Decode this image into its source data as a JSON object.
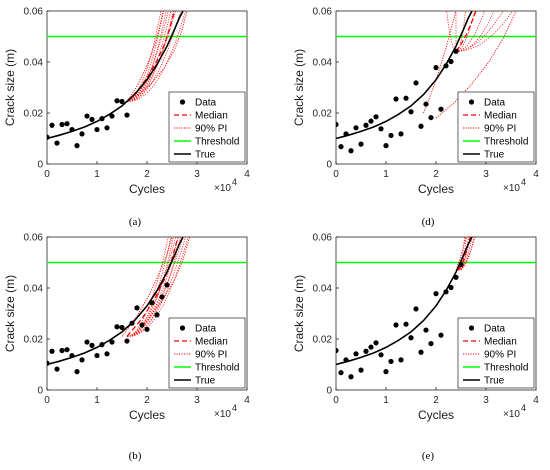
{
  "colors": {
    "data": "#000000",
    "median": "#ff0000",
    "pi": "#ff0000",
    "threshold": "#00ff00",
    "true": "#000000"
  },
  "legend_labels": [
    "Data",
    "Median",
    "90% PI",
    "Threshold",
    "True"
  ],
  "chart_data": [
    {
      "type": "line",
      "caption": "(a)",
      "xlabel": "Cycles",
      "ylabel": "Crack size (m)",
      "x_multiplier": "×10",
      "x_exponent": "4",
      "xlim": [
        0,
        4
      ],
      "ylim": [
        0,
        0.06
      ],
      "x_ticks": [
        "0",
        "1",
        "2",
        "3",
        "4"
      ],
      "y_ticks": [
        "0",
        "0.02",
        "0.04",
        "0.06"
      ],
      "threshold": 0.05,
      "legend_position": "lower-right",
      "series": [
        {
          "name": "Data",
          "kind": "scatter",
          "x": [
            0.0,
            0.1,
            0.2,
            0.3,
            0.4,
            0.5,
            0.6,
            0.7,
            0.8,
            0.9,
            1.0,
            1.1,
            1.2,
            1.3,
            1.4,
            1.5,
            1.6
          ],
          "y": [
            0.0105,
            0.0152,
            0.0082,
            0.0155,
            0.0158,
            0.0135,
            0.0072,
            0.0118,
            0.0188,
            0.0175,
            0.0135,
            0.0178,
            0.0142,
            0.0188,
            0.0248,
            0.0245,
            0.0192
          ]
        },
        {
          "name": "True",
          "kind": "line",
          "x": [
            0.0,
            0.25,
            0.5,
            0.75,
            1.0,
            1.25,
            1.5,
            1.75,
            2.0,
            2.2,
            2.4,
            2.55,
            2.65,
            2.72
          ],
          "y": [
            0.01,
            0.0113,
            0.0128,
            0.0145,
            0.0167,
            0.0195,
            0.0228,
            0.0272,
            0.033,
            0.039,
            0.0462,
            0.0528,
            0.0574,
            0.06
          ]
        },
        {
          "name": "Median",
          "kind": "line",
          "x": [
            1.6,
            1.8,
            2.0,
            2.2,
            2.35,
            2.45,
            2.55
          ],
          "y": [
            0.0245,
            0.0285,
            0.0338,
            0.0405,
            0.047,
            0.053,
            0.06
          ]
        },
        {
          "name": "90% PI lower",
          "kind": "line",
          "x": [
            1.6,
            1.8,
            2.0,
            2.15,
            2.25,
            2.32
          ],
          "y": [
            0.0245,
            0.0305,
            0.0385,
            0.0465,
            0.0535,
            0.06
          ]
        },
        {
          "name": "90% PI upper",
          "kind": "line",
          "x": [
            1.6,
            1.85,
            2.1,
            2.35,
            2.55,
            2.7,
            2.8
          ],
          "y": [
            0.0245,
            0.0275,
            0.0318,
            0.0378,
            0.0448,
            0.0525,
            0.06
          ]
        }
      ],
      "fan_end_x": [
        2.3,
        2.35,
        2.4,
        2.45,
        2.5,
        2.55,
        2.6,
        2.7,
        2.8
      ]
    },
    {
      "type": "line",
      "caption": "(d)",
      "xlabel": "Cycles",
      "ylabel": "Crack size (m)",
      "x_multiplier": "×10",
      "x_exponent": "4",
      "xlim": [
        0,
        4
      ],
      "ylim": [
        0,
        0.06
      ],
      "x_ticks": [
        "0",
        "1",
        "2",
        "3",
        "4"
      ],
      "y_ticks": [
        "0",
        "0.02",
        "0.04",
        "0.06"
      ],
      "threshold": 0.05,
      "legend_position": "lower-right",
      "series": [
        {
          "name": "Data",
          "kind": "scatter",
          "x": [
            0.0,
            0.1,
            0.2,
            0.3,
            0.4,
            0.5,
            0.6,
            0.7,
            0.8,
            0.9,
            1.0,
            1.1,
            1.2,
            1.3,
            1.4,
            1.5,
            1.6,
            1.7,
            1.8,
            1.9,
            2.0,
            2.1,
            2.2,
            2.3,
            2.4
          ],
          "y": [
            0.0155,
            0.0068,
            0.0118,
            0.0052,
            0.0142,
            0.0078,
            0.0152,
            0.0168,
            0.0185,
            0.0138,
            0.0072,
            0.0112,
            0.0255,
            0.0118,
            0.0258,
            0.0205,
            0.0318,
            0.0148,
            0.0235,
            0.0182,
            0.0378,
            0.0215,
            0.0385,
            0.0402,
            0.0442
          ]
        },
        {
          "name": "True",
          "kind": "line",
          "x": [
            0.0,
            0.25,
            0.5,
            0.75,
            1.0,
            1.25,
            1.5,
            1.75,
            2.0,
            2.2,
            2.4,
            2.55,
            2.65,
            2.72
          ],
          "y": [
            0.01,
            0.0113,
            0.0128,
            0.0145,
            0.0167,
            0.0195,
            0.0228,
            0.0272,
            0.033,
            0.039,
            0.0462,
            0.0528,
            0.0574,
            0.06
          ]
        },
        {
          "name": "Median",
          "kind": "line",
          "x": [
            2.4,
            2.5,
            2.6,
            2.7,
            2.8
          ],
          "y": [
            0.0442,
            0.047,
            0.0505,
            0.055,
            0.06
          ]
        },
        {
          "name": "90% PI lower",
          "kind": "line",
          "x": [
            1.75,
            1.9,
            2.05,
            2.2,
            2.3,
            2.4
          ],
          "y": [
            0.02,
            0.0275,
            0.036,
            0.0455,
            0.053,
            0.06
          ]
        },
        {
          "name": "90% PI upper",
          "kind": "line",
          "x": [
            2.0,
            2.35,
            2.7,
            3.05,
            3.35,
            3.6
          ],
          "y": [
            0.018,
            0.0238,
            0.031,
            0.0398,
            0.0495,
            0.06
          ]
        }
      ],
      "fan_end_x": [
        2.2,
        2.4,
        2.6,
        2.8,
        3.0,
        3.2,
        3.4,
        3.6
      ]
    },
    {
      "type": "line",
      "caption": "(b)",
      "xlabel": "Cycles",
      "ylabel": "Crack size (m)",
      "x_multiplier": "×10",
      "x_exponent": "4",
      "xlim": [
        0,
        4
      ],
      "ylim": [
        0,
        0.06
      ],
      "x_ticks": [
        "0",
        "1",
        "2",
        "3",
        "4"
      ],
      "y_ticks": [
        "0",
        "0.02",
        "0.04",
        "0.06"
      ],
      "threshold": 0.05,
      "legend_position": "lower-right",
      "series": [
        {
          "name": "Data",
          "kind": "scatter",
          "x": [
            0.0,
            0.1,
            0.2,
            0.3,
            0.4,
            0.5,
            0.6,
            0.7,
            0.8,
            0.9,
            1.0,
            1.1,
            1.2,
            1.3,
            1.4,
            1.5,
            1.6,
            1.7,
            1.8,
            1.9,
            2.0,
            2.1,
            2.2,
            2.3,
            2.4
          ],
          "y": [
            0.0105,
            0.0152,
            0.0082,
            0.0155,
            0.0158,
            0.0135,
            0.0072,
            0.0118,
            0.0188,
            0.0175,
            0.0135,
            0.0178,
            0.0142,
            0.0188,
            0.0248,
            0.0245,
            0.0192,
            0.0262,
            0.0322,
            0.0255,
            0.0238,
            0.0342,
            0.0295,
            0.0365,
            0.0412
          ]
        },
        {
          "name": "True",
          "kind": "line",
          "x": [
            0.0,
            0.25,
            0.5,
            0.75,
            1.0,
            1.25,
            1.5,
            1.75,
            2.0,
            2.2,
            2.4,
            2.55,
            2.65,
            2.72
          ],
          "y": [
            0.01,
            0.0113,
            0.0128,
            0.0145,
            0.0167,
            0.0195,
            0.0228,
            0.0272,
            0.033,
            0.039,
            0.0462,
            0.0528,
            0.0574,
            0.06
          ]
        },
        {
          "name": "Median",
          "kind": "line",
          "x": [
            1.6,
            1.9,
            2.15,
            2.35,
            2.5,
            2.62
          ],
          "y": [
            0.021,
            0.028,
            0.0355,
            0.0435,
            0.0515,
            0.06
          ]
        },
        {
          "name": "90% PI lower",
          "kind": "line",
          "x": [
            1.5,
            1.8,
            2.05,
            2.25,
            2.4,
            2.5
          ],
          "y": [
            0.021,
            0.029,
            0.0375,
            0.046,
            0.053,
            0.06
          ]
        },
        {
          "name": "90% PI upper",
          "kind": "line",
          "x": [
            1.7,
            2.0,
            2.3,
            2.55,
            2.72,
            2.85
          ],
          "y": [
            0.021,
            0.0272,
            0.035,
            0.0432,
            0.051,
            0.06
          ]
        }
      ],
      "fan_end_x": [
        2.45,
        2.5,
        2.55,
        2.6,
        2.65,
        2.7,
        2.75,
        2.8,
        2.85
      ]
    },
    {
      "type": "line",
      "caption": "(e)",
      "xlabel": "Cycles",
      "ylabel": "Crack size (m)",
      "x_multiplier": "×10",
      "x_exponent": "4",
      "xlim": [
        0,
        4
      ],
      "ylim": [
        0,
        0.06
      ],
      "x_ticks": [
        "0",
        "1",
        "2",
        "3",
        "4"
      ],
      "y_ticks": [
        "0",
        "0.02",
        "0.04",
        "0.06"
      ],
      "threshold": 0.05,
      "legend_position": "lower-right",
      "series": [
        {
          "name": "Data",
          "kind": "scatter",
          "x": [
            0.0,
            0.1,
            0.2,
            0.3,
            0.4,
            0.5,
            0.6,
            0.7,
            0.8,
            0.9,
            1.0,
            1.1,
            1.2,
            1.3,
            1.4,
            1.5,
            1.6,
            1.7,
            1.8,
            1.9,
            2.0,
            2.1,
            2.2,
            2.3,
            2.4,
            2.5
          ],
          "y": [
            0.0155,
            0.0068,
            0.0118,
            0.0052,
            0.0142,
            0.0078,
            0.0152,
            0.0168,
            0.0185,
            0.0138,
            0.0072,
            0.0112,
            0.0255,
            0.0118,
            0.0258,
            0.0205,
            0.0318,
            0.0148,
            0.0235,
            0.0182,
            0.0378,
            0.0215,
            0.0385,
            0.0402,
            0.0442,
            0.0492
          ]
        },
        {
          "name": "True",
          "kind": "line",
          "x": [
            0.0,
            0.25,
            0.5,
            0.75,
            1.0,
            1.25,
            1.5,
            1.75,
            2.0,
            2.2,
            2.4,
            2.55,
            2.65,
            2.72
          ],
          "y": [
            0.01,
            0.0113,
            0.0128,
            0.0145,
            0.0167,
            0.0195,
            0.0228,
            0.0272,
            0.033,
            0.039,
            0.0462,
            0.0528,
            0.0574,
            0.06
          ]
        },
        {
          "name": "Median",
          "kind": "line",
          "x": [
            2.45,
            2.55,
            2.62,
            2.68
          ],
          "y": [
            0.047,
            0.0508,
            0.0552,
            0.06
          ]
        },
        {
          "name": "90% PI lower",
          "kind": "line",
          "x": [
            2.4,
            2.48,
            2.55,
            2.6
          ],
          "y": [
            0.047,
            0.0515,
            0.0562,
            0.06
          ]
        },
        {
          "name": "90% PI upper",
          "kind": "line",
          "x": [
            2.5,
            2.6,
            2.7,
            2.78
          ],
          "y": [
            0.047,
            0.0505,
            0.0548,
            0.06
          ]
        }
      ],
      "fan_end_x": [
        2.58,
        2.62,
        2.66,
        2.7,
        2.74,
        2.78
      ]
    }
  ]
}
